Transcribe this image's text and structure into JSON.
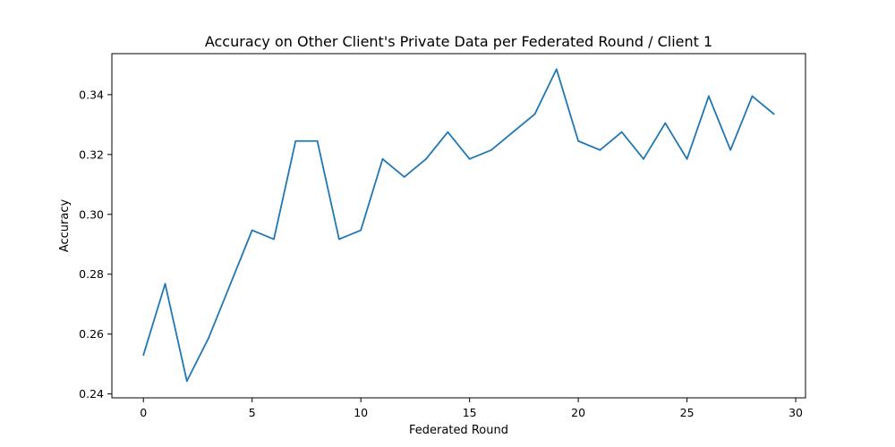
{
  "chart_data": {
    "type": "line",
    "title": "Accuracy on Other Client's Private Data per Federated Round / Client 1",
    "xlabel": "Federated Round",
    "ylabel": "Accuracy",
    "xlim": [
      -1.45,
      30.45
    ],
    "ylim": [
      0.2387,
      0.3537
    ],
    "x_ticks": [
      0,
      5,
      10,
      15,
      20,
      25,
      30
    ],
    "y_ticks": [
      0.24,
      0.26,
      0.28,
      0.3,
      0.32,
      0.34
    ],
    "y_tick_labels": [
      "0.24",
      "0.26",
      "0.28",
      "0.30",
      "0.32",
      "0.34"
    ],
    "grid": false,
    "series": [
      {
        "name": "Client 1",
        "color": "#1f77b4",
        "x": [
          0,
          1,
          2,
          3,
          4,
          5,
          6,
          7,
          8,
          9,
          10,
          11,
          12,
          13,
          14,
          15,
          16,
          17,
          18,
          19,
          20,
          21,
          22,
          23,
          24,
          25,
          26,
          27,
          28,
          29
        ],
        "values": [
          0.253,
          0.2768,
          0.2443,
          0.2587,
          0.2767,
          0.2947,
          0.2917,
          0.3245,
          0.3245,
          0.2917,
          0.2947,
          0.3185,
          0.3125,
          0.3185,
          0.3275,
          0.3185,
          0.3215,
          0.3275,
          0.3335,
          0.3485,
          0.3245,
          0.3215,
          0.3275,
          0.3185,
          0.3305,
          0.3185,
          0.3395,
          0.3215,
          0.3395,
          0.3335
        ]
      }
    ]
  }
}
